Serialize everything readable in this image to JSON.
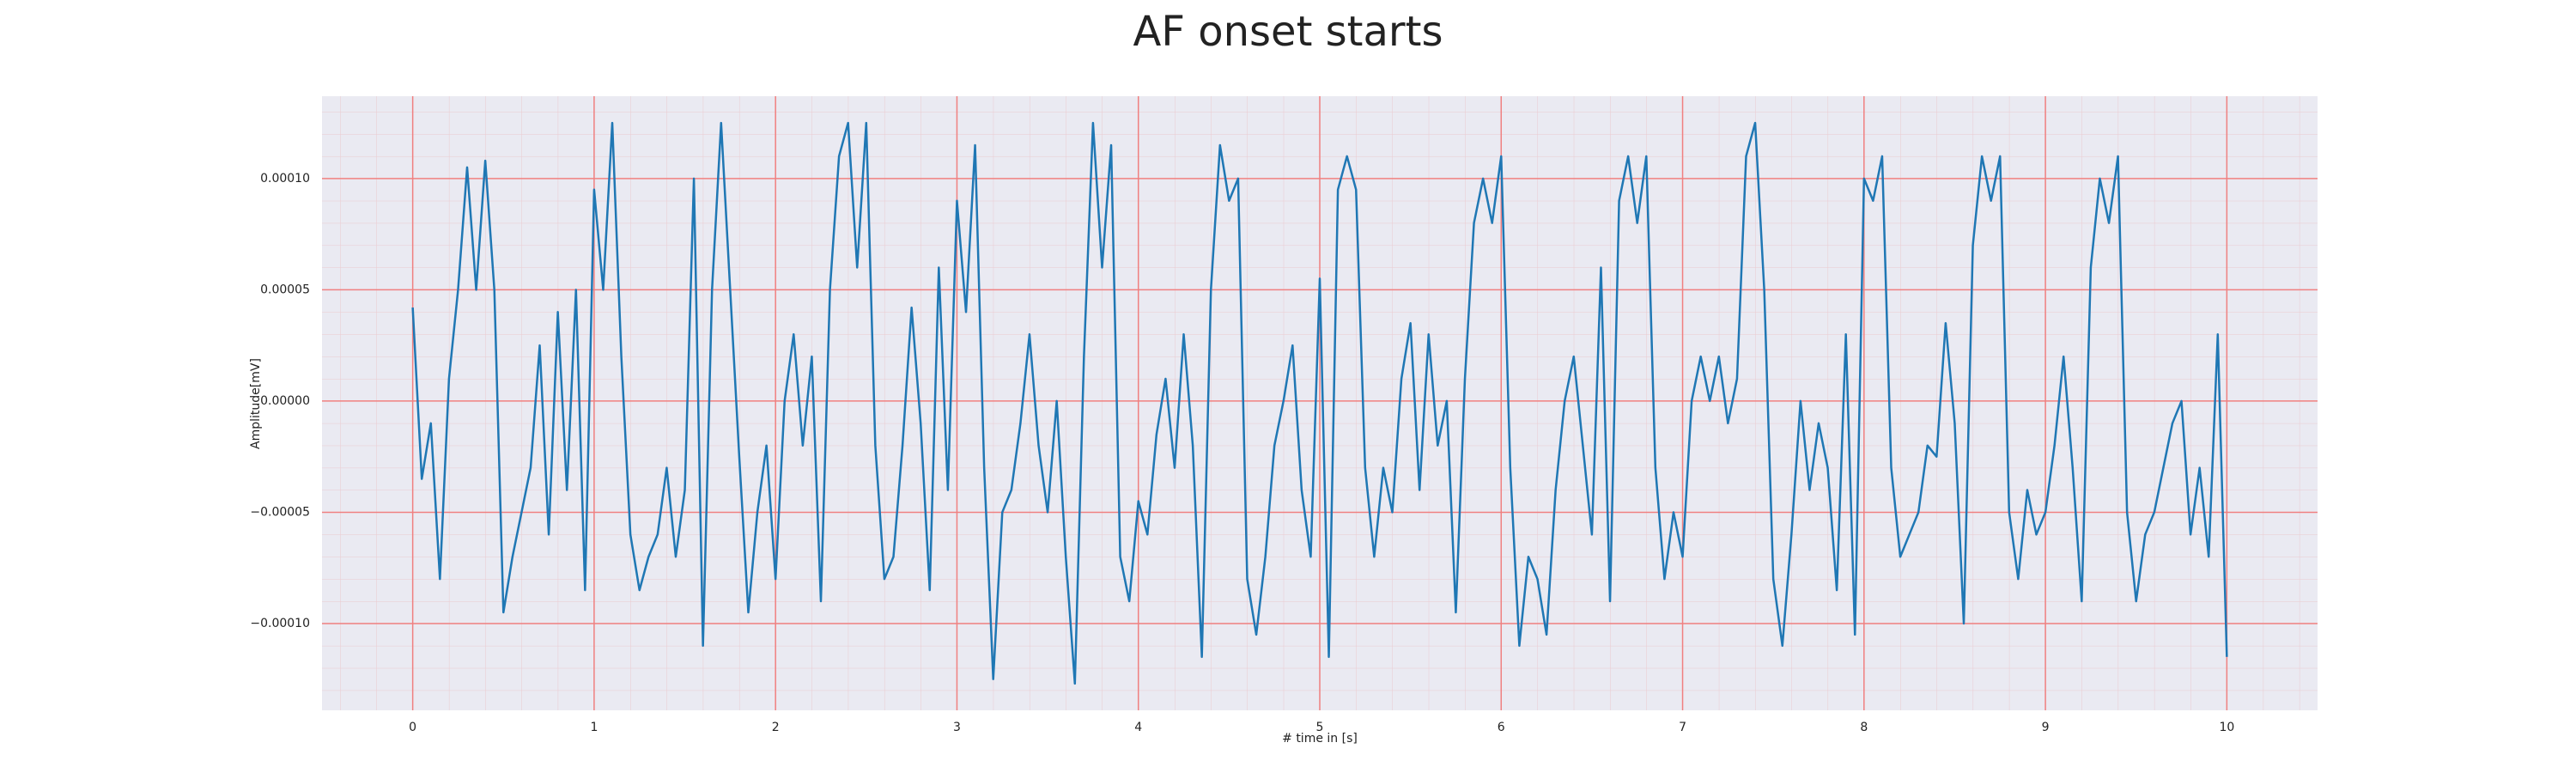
{
  "chart_data": {
    "type": "line",
    "title": "AF onset starts",
    "xlabel": "# time in [s]",
    "ylabel": "Amplitude[mV]",
    "color": "#1f77b4",
    "grid": true,
    "grid_color": "#f08080",
    "minor_grid": true,
    "background": "#eaeaf2",
    "xlim": [
      -0.5,
      10.5
    ],
    "ylim": [
      -0.000139,
      0.000137
    ],
    "xticks": [
      0,
      1,
      2,
      3,
      4,
      5,
      6,
      7,
      8,
      9,
      10
    ],
    "yticks": [
      {
        "value": -0.0001,
        "label": "−0.00010"
      },
      {
        "value": -5e-05,
        "label": "−0.00005"
      },
      {
        "value": 0,
        "label": "0.00000"
      },
      {
        "value": 5e-05,
        "label": "0.00005"
      },
      {
        "value": 0.0001,
        "label": "0.00010"
      }
    ],
    "x": [
      0,
      0.05,
      0.1,
      0.15,
      0.2,
      0.25,
      0.3,
      0.35,
      0.4,
      0.45,
      0.5,
      0.55,
      0.6,
      0.65,
      0.7,
      0.75,
      0.8,
      0.85,
      0.9,
      0.95,
      1,
      1.05,
      1.1,
      1.15,
      1.2,
      1.25,
      1.3,
      1.35,
      1.4,
      1.45,
      1.5,
      1.55,
      1.6,
      1.65,
      1.7,
      1.75,
      1.8,
      1.85,
      1.9,
      1.95,
      2,
      2.05,
      2.1,
      2.15,
      2.2,
      2.25,
      2.3,
      2.35,
      2.4,
      2.45,
      2.5,
      2.55,
      2.6,
      2.65,
      2.7,
      2.75,
      2.8,
      2.85,
      2.9,
      2.95,
      3,
      3.05,
      3.1,
      3.15,
      3.2,
      3.25,
      3.3,
      3.35,
      3.4,
      3.45,
      3.5,
      3.55,
      3.6,
      3.65,
      3.7,
      3.75,
      3.8,
      3.85,
      3.9,
      3.95,
      4,
      4.05,
      4.1,
      4.15,
      4.2,
      4.25,
      4.3,
      4.35,
      4.4,
      4.45,
      4.5,
      4.55,
      4.6,
      4.65,
      4.7,
      4.75,
      4.8,
      4.85,
      4.9,
      4.95,
      5,
      5.05,
      5.1,
      5.15,
      5.2,
      5.25,
      5.3,
      5.35,
      5.4,
      5.45,
      5.5,
      5.55,
      5.6,
      5.65,
      5.7,
      5.75,
      5.8,
      5.85,
      5.9,
      5.95,
      6,
      6.05,
      6.1,
      6.15,
      6.2,
      6.25,
      6.3,
      6.35,
      6.4,
      6.45,
      6.5,
      6.55,
      6.6,
      6.65,
      6.7,
      6.75,
      6.8,
      6.85,
      6.9,
      6.95,
      7,
      7.05,
      7.1,
      7.15,
      7.2,
      7.25,
      7.3,
      7.35,
      7.4,
      7.45,
      7.5,
      7.55,
      7.6,
      7.65,
      7.7,
      7.75,
      7.8,
      7.85,
      7.9,
      7.95,
      8,
      8.05,
      8.1,
      8.15,
      8.2,
      8.25,
      8.3,
      8.35,
      8.4,
      8.45,
      8.5,
      8.55,
      8.6,
      8.65,
      8.7,
      8.75,
      8.8,
      8.85,
      8.9,
      8.95,
      9,
      9.05,
      9.1,
      9.15,
      9.2,
      9.25,
      9.3,
      9.35,
      9.4,
      9.45,
      9.5,
      9.55,
      9.6,
      9.65,
      9.7,
      9.75,
      9.8,
      9.85,
      9.9,
      9.95,
      10
    ],
    "values": [
      4.2e-05,
      -3.5e-05,
      -1e-05,
      -8e-05,
      1e-05,
      5e-05,
      0.000105,
      5e-05,
      0.000108,
      5e-05,
      -9.5e-05,
      -7e-05,
      -5e-05,
      -3e-05,
      2.5e-05,
      -6e-05,
      4e-05,
      -4e-05,
      5e-05,
      -8.5e-05,
      9.5e-05,
      5e-05,
      0.000125,
      2e-05,
      -6e-05,
      -8.5e-05,
      -7e-05,
      -6e-05,
      -3e-05,
      -7e-05,
      -4e-05,
      0.0001,
      -0.00011,
      5e-05,
      0.000125,
      5e-05,
      -2.5e-05,
      -9.5e-05,
      -5e-05,
      -2e-05,
      -8e-05,
      0,
      3e-05,
      -2e-05,
      2e-05,
      -9e-05,
      5e-05,
      0.00011,
      0.000125,
      6e-05,
      0.000125,
      -2e-05,
      -8e-05,
      -7e-05,
      -2e-05,
      4.2e-05,
      -1e-05,
      -8.5e-05,
      6e-05,
      -4e-05,
      9e-05,
      4e-05,
      0.000115,
      -3e-05,
      -0.000125,
      -5e-05,
      -4e-05,
      -1e-05,
      3e-05,
      -2e-05,
      -5e-05,
      0,
      -7e-05,
      -0.000127,
      2e-05,
      0.000125,
      6e-05,
      0.000115,
      -7e-05,
      -9e-05,
      -4.5e-05,
      -6e-05,
      -1.5e-05,
      1e-05,
      -3e-05,
      3e-05,
      -2e-05,
      -0.000115,
      5e-05,
      0.000115,
      9e-05,
      0.0001,
      -8e-05,
      -0.000105,
      -7e-05,
      -2e-05,
      0,
      2.5e-05,
      -4e-05,
      -7e-05,
      5.5e-05,
      -0.000115,
      9.5e-05,
      0.00011,
      9.5e-05,
      -3e-05,
      -7e-05,
      -3e-05,
      -5e-05,
      1e-05,
      3.5e-05,
      -4e-05,
      3e-05,
      -2e-05,
      0,
      -9.5e-05,
      1e-05,
      8e-05,
      0.0001,
      8e-05,
      0.00011,
      -3e-05,
      -0.00011,
      -7e-05,
      -8e-05,
      -0.000105,
      -4e-05,
      0,
      2e-05,
      -2e-05,
      -6e-05,
      6e-05,
      -9e-05,
      9e-05,
      0.00011,
      8e-05,
      0.00011,
      -3e-05,
      -8e-05,
      -5e-05,
      -7e-05,
      0,
      2e-05,
      0,
      2e-05,
      -1e-05,
      1e-05,
      0.00011,
      0.000125,
      5e-05,
      -8e-05,
      -0.00011,
      -6e-05,
      0,
      -4e-05,
      -1e-05,
      -3e-05,
      -8.5e-05,
      3e-05,
      -0.000105,
      0.0001,
      9e-05,
      0.00011,
      -3e-05,
      -7e-05,
      -6e-05,
      -5e-05,
      -2e-05,
      -2.5e-05,
      3.5e-05,
      -1e-05,
      -0.0001,
      7e-05,
      0.00011,
      9e-05,
      0.00011,
      -5e-05,
      -8e-05,
      -4e-05,
      -6e-05,
      -5e-05,
      -2e-05,
      2e-05,
      -3e-05,
      -9e-05,
      6e-05,
      0.0001,
      8e-05,
      0.00011,
      -5e-05,
      -9e-05,
      -6e-05,
      -5e-05,
      -3e-05,
      -1e-05,
      0,
      -6e-05,
      -3e-05,
      -7e-05,
      3e-05,
      -0.000115
    ]
  }
}
